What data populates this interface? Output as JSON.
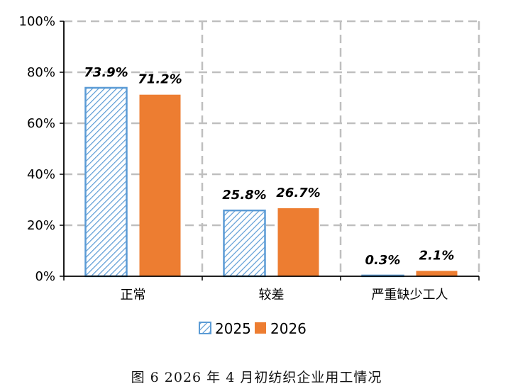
{
  "caption": "图 6   2026 年 4 月初纺织企业用工情况",
  "chart_data": {
    "type": "bar",
    "categories": [
      "正常",
      "较差",
      "严重缺少工人"
    ],
    "series": [
      {
        "name": "2025",
        "values": [
          73.9,
          25.8,
          0.3
        ],
        "labels": [
          "73.9%",
          "25.8%",
          "0.3%"
        ],
        "color": "#5b9bd5",
        "pattern": "diagonal-hatch"
      },
      {
        "name": "2026",
        "values": [
          71.2,
          26.7,
          2.1
        ],
        "labels": [
          "71.2%",
          "26.7%",
          "2.1%"
        ],
        "color": "#ed7d31",
        "pattern": "solid"
      }
    ],
    "ylim": [
      0,
      100
    ],
    "yticks": [
      "0%",
      "20%",
      "40%",
      "60%",
      "80%",
      "100%"
    ],
    "grid": true,
    "legend_position": "bottom"
  }
}
